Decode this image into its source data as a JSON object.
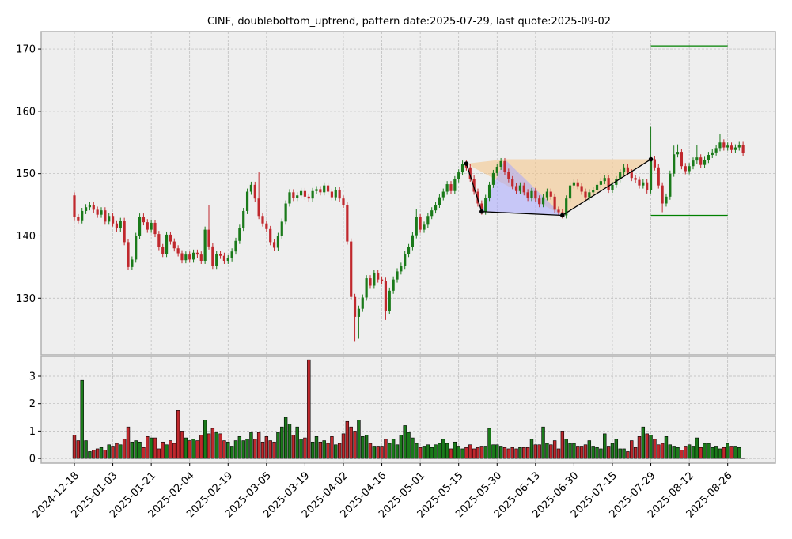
{
  "chart_data": {
    "type": "candlestick",
    "title": "CINF, doublebottom_uptrend, pattern date:2025-07-29, last quote:2025-09-02",
    "x": [
      "2024-12-18",
      "2024-12-19",
      "2024-12-20",
      "2024-12-23",
      "2024-12-24",
      "2024-12-26",
      "2024-12-27",
      "2024-12-30",
      "2024-12-31",
      "2025-01-02",
      "2025-01-03",
      "2025-01-06",
      "2025-01-07",
      "2025-01-08",
      "2025-01-10",
      "2025-01-13",
      "2025-01-14",
      "2025-01-15",
      "2025-01-16",
      "2025-01-17",
      "2025-01-21",
      "2025-01-22",
      "2025-01-23",
      "2025-01-24",
      "2025-01-27",
      "2025-01-28",
      "2025-01-29",
      "2025-01-30",
      "2025-01-31",
      "2025-02-03",
      "2025-02-04",
      "2025-02-05",
      "2025-02-06",
      "2025-02-07",
      "2025-02-10",
      "2025-02-11",
      "2025-02-12",
      "2025-02-13",
      "2025-02-14",
      "2025-02-18",
      "2025-02-19",
      "2025-02-20",
      "2025-02-21",
      "2025-02-24",
      "2025-02-25",
      "2025-02-26",
      "2025-02-27",
      "2025-02-28",
      "2025-03-03",
      "2025-03-04",
      "2025-03-05",
      "2025-03-06",
      "2025-03-07",
      "2025-03-10",
      "2025-03-11",
      "2025-03-12",
      "2025-03-13",
      "2025-03-14",
      "2025-03-17",
      "2025-03-18",
      "2025-03-19",
      "2025-03-20",
      "2025-03-21",
      "2025-03-24",
      "2025-03-25",
      "2025-03-26",
      "2025-03-27",
      "2025-03-28",
      "2025-03-31",
      "2025-04-01",
      "2025-04-02",
      "2025-04-03",
      "2025-04-04",
      "2025-04-07",
      "2025-04-08",
      "2025-04-09",
      "2025-04-10",
      "2025-04-11",
      "2025-04-14",
      "2025-04-15",
      "2025-04-16",
      "2025-04-17",
      "2025-04-21",
      "2025-04-22",
      "2025-04-23",
      "2025-04-24",
      "2025-04-25",
      "2025-04-28",
      "2025-04-29",
      "2025-04-30",
      "2025-05-01",
      "2025-05-02",
      "2025-05-05",
      "2025-05-06",
      "2025-05-07",
      "2025-05-08",
      "2025-05-09",
      "2025-05-12",
      "2025-05-13",
      "2025-05-14",
      "2025-05-15",
      "2025-05-16",
      "2025-05-19",
      "2025-05-20",
      "2025-05-21",
      "2025-05-22",
      "2025-05-23",
      "2025-05-27",
      "2025-05-28",
      "2025-05-29",
      "2025-05-30",
      "2025-06-02",
      "2025-06-03",
      "2025-06-04",
      "2025-06-05",
      "2025-06-06",
      "2025-06-09",
      "2025-06-10",
      "2025-06-11",
      "2025-06-12",
      "2025-06-13",
      "2025-06-16",
      "2025-06-17",
      "2025-06-18",
      "2025-06-20",
      "2025-06-23",
      "2025-06-24",
      "2025-06-25",
      "2025-06-26",
      "2025-06-27",
      "2025-06-30",
      "2025-07-01",
      "2025-07-02",
      "2025-07-03",
      "2025-07-07",
      "2025-07-08",
      "2025-07-09",
      "2025-07-10",
      "2025-07-11",
      "2025-07-14",
      "2025-07-15",
      "2025-07-16",
      "2025-07-17",
      "2025-07-18",
      "2025-07-21",
      "2025-07-22",
      "2025-07-23",
      "2025-07-24",
      "2025-07-25",
      "2025-07-28",
      "2025-07-29",
      "2025-07-30",
      "2025-07-31",
      "2025-08-01",
      "2025-08-04",
      "2025-08-05",
      "2025-08-06",
      "2025-08-07",
      "2025-08-08",
      "2025-08-11",
      "2025-08-12",
      "2025-08-13",
      "2025-08-14",
      "2025-08-15",
      "2025-08-18",
      "2025-08-19",
      "2025-08-20",
      "2025-08-21",
      "2025-08-22",
      "2025-08-25",
      "2025-08-26",
      "2025-08-27",
      "2025-08-28",
      "2025-08-29",
      "2025-09-02"
    ],
    "open": [
      146.5,
      143.0,
      142.5,
      144.0,
      144.6,
      145.0,
      144.2,
      143.4,
      144.1,
      142.3,
      143.2,
      142.0,
      141.2,
      142.4,
      139.0,
      135.0,
      136.2,
      140.0,
      143.1,
      142.2,
      141.0,
      142.1,
      140.3,
      138.2,
      137.1,
      140.2,
      139.1,
      138.0,
      137.2,
      136.1,
      137.0,
      136.2,
      137.3,
      137.0,
      136.0,
      141.0,
      138.3,
      135.2,
      137.1,
      136.8,
      136.0,
      136.4,
      137.5,
      139.2,
      141.3,
      144.0,
      147.1,
      148.2,
      146.0,
      143.2,
      142.0,
      141.1,
      139.0,
      138.1,
      140.0,
      142.3,
      145.2,
      147.0,
      146.1,
      146.5,
      147.2,
      146.3,
      146.0,
      147.2,
      147.5,
      147.0,
      148.1,
      147.1,
      146.2,
      147.3,
      146.0,
      145.0,
      139.1,
      130.2,
      127.0,
      128.3,
      130.1,
      133.2,
      132.0,
      134.1,
      133.0,
      132.8,
      128.0,
      131.2,
      133.0,
      134.3,
      135.2,
      137.1,
      138.2,
      140.1,
      143.0,
      141.0,
      141.8,
      143.2,
      144.1,
      145.0,
      146.2,
      147.1,
      148.3,
      147.2,
      149.1,
      150.2,
      151.6,
      151.0,
      149.2,
      147.1,
      145.2,
      143.9,
      146.1,
      148.2,
      150.1,
      151.1,
      152.0,
      150.3,
      149.1,
      148.0,
      147.2,
      148.1,
      147.0,
      146.1,
      147.2,
      146.0,
      145.1,
      146.2,
      147.1,
      146.3,
      144.2,
      143.8,
      143.3,
      146.0,
      148.1,
      148.6,
      148.0,
      147.1,
      146.2,
      147.0,
      147.4,
      148.2,
      148.8,
      149.3,
      147.4,
      148.2,
      149.1,
      150.2,
      151.0,
      150.2,
      149.3,
      149.0,
      148.1,
      148.6,
      147.3,
      152.3,
      151.0,
      148.1,
      145.2,
      146.3,
      150.0,
      153.1,
      153.5,
      151.2,
      150.4,
      151.2,
      152.1,
      152.6,
      151.4,
      152.2,
      153.0,
      153.4,
      154.1,
      155.0,
      154.2,
      154.5,
      153.8,
      154.2,
      154.6
    ],
    "high": [
      147.0,
      143.5,
      144.5,
      145.1,
      145.5,
      145.5,
      144.7,
      144.6,
      144.6,
      143.7,
      143.7,
      142.5,
      142.9,
      142.9,
      139.5,
      136.7,
      140.5,
      143.6,
      143.6,
      142.7,
      142.6,
      142.6,
      140.8,
      138.7,
      140.7,
      140.7,
      139.6,
      138.5,
      137.7,
      137.5,
      137.5,
      137.8,
      137.8,
      137.5,
      141.5,
      145.0,
      138.8,
      137.6,
      137.6,
      137.3,
      136.9,
      138.0,
      139.7,
      141.8,
      144.5,
      147.6,
      148.7,
      148.7,
      150.2,
      143.7,
      142.5,
      141.6,
      139.5,
      140.5,
      142.8,
      145.7,
      147.5,
      147.5,
      147.0,
      147.7,
      147.7,
      146.8,
      147.7,
      148.0,
      148.0,
      148.6,
      148.6,
      147.6,
      147.8,
      147.8,
      146.5,
      145.5,
      139.6,
      130.7,
      128.8,
      130.6,
      133.7,
      133.7,
      134.6,
      134.6,
      133.5,
      133.3,
      131.7,
      133.5,
      134.8,
      135.7,
      137.6,
      138.7,
      140.6,
      144.3,
      143.5,
      142.3,
      143.7,
      144.6,
      145.5,
      146.7,
      147.6,
      148.8,
      148.8,
      149.6,
      150.7,
      152.1,
      152.1,
      151.5,
      149.7,
      147.6,
      145.7,
      146.6,
      148.7,
      150.6,
      151.6,
      152.5,
      152.5,
      150.8,
      149.6,
      148.5,
      148.6,
      148.6,
      147.5,
      147.7,
      147.7,
      146.5,
      146.7,
      147.6,
      147.6,
      146.8,
      144.7,
      144.3,
      146.5,
      148.6,
      149.1,
      149.1,
      148.5,
      147.6,
      147.5,
      147.9,
      148.7,
      149.3,
      149.8,
      149.8,
      148.7,
      149.6,
      150.7,
      151.5,
      151.5,
      150.7,
      149.8,
      149.5,
      149.1,
      149.1,
      157.5,
      152.8,
      151.5,
      148.6,
      146.8,
      150.5,
      154.5,
      154.7,
      154.0,
      151.7,
      151.7,
      152.6,
      154.6,
      153.1,
      152.7,
      153.5,
      153.9,
      154.6,
      156.3,
      155.5,
      155.0,
      155.0,
      154.7,
      155.1,
      155.1
    ],
    "low": [
      142.5,
      142.0,
      142.0,
      143.5,
      144.1,
      143.7,
      142.9,
      142.9,
      141.8,
      141.8,
      141.5,
      140.7,
      140.7,
      138.5,
      134.5,
      134.5,
      135.7,
      139.5,
      141.7,
      140.5,
      140.5,
      139.8,
      137.7,
      136.6,
      136.6,
      138.6,
      137.5,
      136.7,
      135.6,
      135.6,
      135.7,
      135.7,
      136.5,
      135.5,
      135.5,
      137.8,
      134.7,
      134.7,
      136.3,
      135.5,
      135.5,
      135.9,
      137.0,
      138.7,
      140.8,
      143.5,
      146.6,
      145.5,
      142.7,
      141.5,
      140.6,
      138.5,
      137.6,
      137.6,
      139.5,
      141.8,
      144.7,
      145.6,
      145.6,
      146.0,
      145.8,
      145.5,
      145.5,
      146.7,
      146.5,
      146.5,
      146.6,
      145.7,
      145.7,
      145.5,
      144.5,
      138.6,
      129.7,
      123.0,
      123.5,
      127.8,
      129.6,
      131.5,
      131.5,
      132.5,
      132.3,
      126.5,
      127.5,
      130.7,
      132.5,
      133.8,
      134.7,
      136.6,
      137.7,
      139.6,
      140.5,
      140.5,
      141.3,
      142.7,
      143.6,
      144.5,
      145.7,
      146.6,
      146.7,
      146.7,
      148.6,
      149.7,
      150.5,
      148.7,
      146.6,
      144.7,
      143.4,
      143.4,
      145.6,
      147.7,
      149.6,
      150.6,
      149.8,
      148.6,
      147.5,
      146.7,
      146.7,
      146.5,
      145.6,
      145.6,
      145.5,
      144.6,
      144.6,
      145.7,
      145.8,
      143.7,
      143.3,
      142.8,
      142.8,
      145.5,
      147.6,
      147.5,
      146.6,
      145.7,
      145.7,
      146.5,
      146.9,
      147.7,
      148.3,
      146.9,
      146.9,
      147.7,
      148.6,
      149.7,
      149.7,
      148.8,
      148.5,
      147.6,
      147.6,
      146.8,
      146.8,
      150.5,
      147.6,
      143.8,
      144.7,
      145.8,
      149.5,
      152.6,
      150.7,
      149.9,
      149.9,
      150.7,
      151.6,
      150.9,
      150.9,
      151.7,
      152.5,
      152.9,
      153.6,
      153.7,
      153.7,
      153.3,
      153.3,
      153.7,
      152.8
    ],
    "close": [
      143.0,
      142.5,
      144.0,
      144.6,
      145.0,
      144.2,
      143.4,
      144.1,
      142.3,
      143.2,
      142.0,
      141.2,
      142.4,
      139.0,
      135.0,
      136.2,
      140.0,
      143.1,
      142.2,
      141.0,
      142.1,
      140.3,
      138.2,
      137.1,
      140.2,
      139.1,
      138.0,
      137.2,
      136.1,
      137.0,
      136.2,
      137.3,
      137.0,
      136.0,
      141.0,
      138.3,
      135.2,
      137.1,
      136.8,
      136.0,
      136.4,
      137.5,
      139.2,
      141.3,
      144.0,
      147.1,
      148.2,
      146.0,
      143.2,
      142.0,
      141.1,
      139.0,
      138.1,
      140.0,
      142.3,
      145.2,
      147.0,
      146.1,
      146.5,
      147.2,
      146.3,
      146.0,
      147.2,
      147.5,
      147.0,
      148.1,
      147.1,
      146.2,
      147.3,
      146.0,
      145.0,
      139.1,
      130.2,
      127.0,
      128.3,
      130.1,
      133.2,
      132.0,
      134.1,
      133.0,
      132.8,
      128.0,
      131.2,
      133.0,
      134.3,
      135.2,
      137.1,
      138.2,
      140.1,
      143.0,
      141.0,
      141.8,
      143.2,
      144.1,
      145.0,
      146.2,
      147.1,
      148.3,
      147.2,
      149.1,
      150.2,
      151.6,
      151.0,
      149.2,
      147.1,
      145.2,
      143.9,
      146.1,
      148.2,
      150.1,
      151.1,
      152.0,
      150.3,
      149.1,
      148.0,
      147.2,
      148.1,
      147.0,
      146.1,
      147.2,
      146.0,
      145.1,
      146.2,
      147.1,
      146.3,
      144.2,
      143.8,
      143.3,
      146.0,
      148.1,
      148.6,
      148.0,
      147.1,
      146.2,
      147.0,
      147.4,
      148.2,
      148.8,
      149.3,
      147.4,
      148.2,
      149.1,
      150.2,
      151.0,
      150.2,
      149.3,
      149.0,
      148.1,
      148.6,
      147.3,
      152.3,
      151.0,
      148.1,
      145.2,
      146.3,
      150.0,
      153.1,
      153.5,
      151.2,
      150.4,
      151.2,
      152.1,
      152.6,
      151.4,
      152.2,
      153.0,
      153.4,
      154.1,
      155.0,
      154.2,
      154.5,
      153.8,
      154.2,
      154.6,
      153.3
    ],
    "volume": [
      0.85,
      0.65,
      2.85,
      0.65,
      0.25,
      0.3,
      0.35,
      0.4,
      0.3,
      0.5,
      0.45,
      0.55,
      0.5,
      0.7,
      1.15,
      0.6,
      0.65,
      0.6,
      0.4,
      0.8,
      0.75,
      0.75,
      0.35,
      0.6,
      0.5,
      0.65,
      0.55,
      1.75,
      1.0,
      0.75,
      0.65,
      0.7,
      0.65,
      0.85,
      1.4,
      0.9,
      1.1,
      0.95,
      0.9,
      0.65,
      0.6,
      0.45,
      0.65,
      0.8,
      0.65,
      0.7,
      0.95,
      0.7,
      0.95,
      0.6,
      0.8,
      0.65,
      0.6,
      0.95,
      1.15,
      1.5,
      1.25,
      0.85,
      1.15,
      0.7,
      0.75,
      3.6,
      0.6,
      0.8,
      0.6,
      0.65,
      0.55,
      0.8,
      0.5,
      0.55,
      0.9,
      1.35,
      1.15,
      1.0,
      1.4,
      0.8,
      0.85,
      0.55,
      0.45,
      0.45,
      0.45,
      0.7,
      0.55,
      0.7,
      0.5,
      0.85,
      1.2,
      0.95,
      0.75,
      0.55,
      0.4,
      0.45,
      0.5,
      0.4,
      0.5,
      0.55,
      0.7,
      0.55,
      0.35,
      0.6,
      0.45,
      0.35,
      0.4,
      0.5,
      0.35,
      0.4,
      0.45,
      0.45,
      1.1,
      0.5,
      0.5,
      0.45,
      0.4,
      0.35,
      0.4,
      0.35,
      0.4,
      0.4,
      0.4,
      0.7,
      0.5,
      0.5,
      1.15,
      0.55,
      0.5,
      0.65,
      0.35,
      1.0,
      0.7,
      0.55,
      0.55,
      0.45,
      0.45,
      0.5,
      0.65,
      0.45,
      0.4,
      0.35,
      0.9,
      0.45,
      0.55,
      0.7,
      0.35,
      0.35,
      0.25,
      0.65,
      0.4,
      0.8,
      1.15,
      0.9,
      0.85,
      0.7,
      0.5,
      0.55,
      0.8,
      0.5,
      0.45,
      0.4,
      0.3,
      0.45,
      0.5,
      0.45,
      0.75,
      0.4,
      0.55,
      0.55,
      0.4,
      0.45,
      0.35,
      0.4,
      0.55,
      0.45,
      0.45,
      0.4,
      0.02
    ],
    "ylim": [
      120.9,
      172.8
    ],
    "yticks": [
      130,
      140,
      150,
      160,
      170
    ],
    "volume_ylim": [
      -0.17,
      3.72
    ],
    "volume_yticks": [
      0,
      1,
      2,
      3
    ],
    "up_color": "#1a7a1a",
    "down_color": "#c0282d",
    "grid": true,
    "pattern": {
      "points": [
        {
          "x": "2025-05-19",
          "value": 151.6
        },
        {
          "x": "2025-05-23",
          "value": 143.9
        },
        {
          "x": "2025-06-25",
          "value": 143.3
        },
        {
          "x": "2025-07-29",
          "value": 152.3
        }
      ],
      "peak": {
        "x": "2025-06-03",
        "value": 152.3
      },
      "color": "#000000"
    },
    "targets": [
      {
        "from": "2025-07-29",
        "to": "2025-08-26",
        "value": 170.5
      },
      {
        "from": "2025-07-29",
        "to": "2025-08-26",
        "value": 143.3
      }
    ],
    "target_color": "#008000"
  }
}
